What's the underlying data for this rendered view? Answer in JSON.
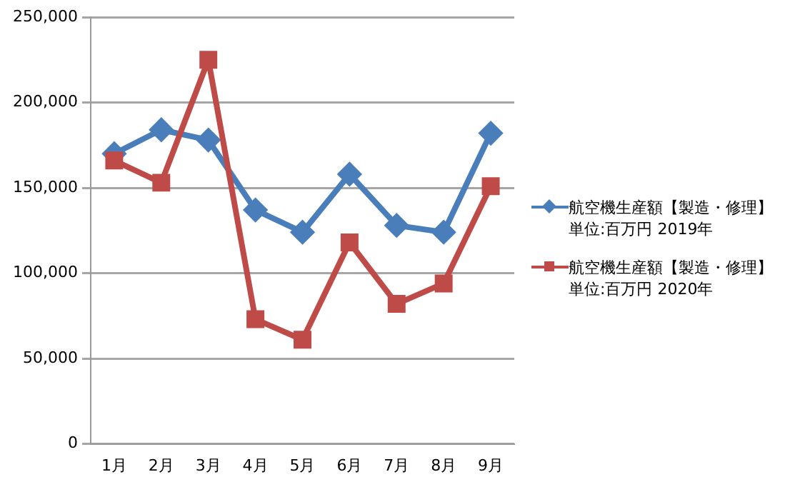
{
  "chart_data": {
    "type": "line",
    "categories": [
      "1月",
      "2月",
      "3月",
      "4月",
      "5月",
      "6月",
      "7月",
      "8月",
      "9月"
    ],
    "series": [
      {
        "name": "航空機生産額【製造・修理】単位:百万円 2019年",
        "color": "#4a7ebb",
        "marker": "diamond",
        "values": [
          170000,
          184000,
          178000,
          137000,
          124000,
          158000,
          128000,
          124000,
          182000
        ]
      },
      {
        "name": "航空機生産額【製造・修理】単位:百万円 2020年",
        "color": "#be4b48",
        "marker": "square",
        "values": [
          166000,
          153000,
          225000,
          73000,
          61000,
          118000,
          82000,
          94000,
          151000
        ]
      }
    ],
    "ylim": [
      0,
      250000
    ],
    "yticks": [
      0,
      {
        "value": 50000,
        "label": "50,000"
      },
      {
        "value": 100000,
        "label": "100,000"
      },
      {
        "value": 150000,
        "label": "150,000"
      },
      {
        "value": 200000,
        "label": "200,000"
      },
      {
        "value": 250000,
        "label": "250,000"
      }
    ],
    "grid": "y",
    "legend": "right",
    "line_style": "solid"
  }
}
